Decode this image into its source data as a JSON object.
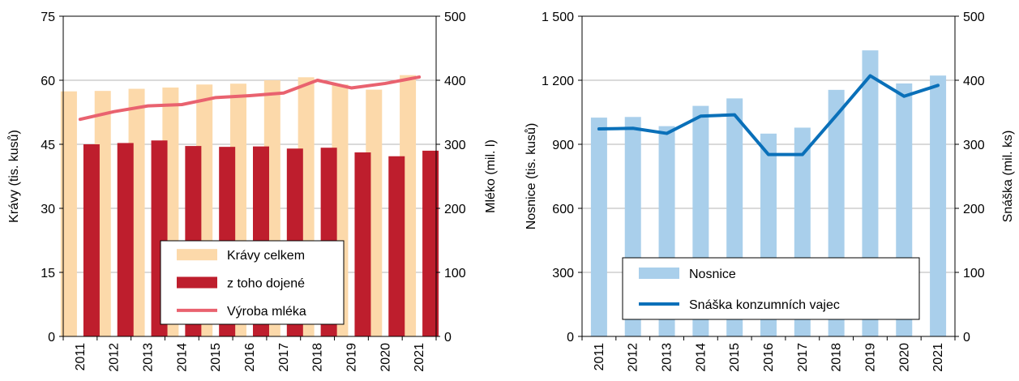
{
  "chart_data": [
    {
      "type": "bar",
      "categories": [
        "2011",
        "2012",
        "2013",
        "2014",
        "2015",
        "2016",
        "2017",
        "2018",
        "2019",
        "2020",
        "2021"
      ],
      "series": [
        {
          "name": "Krávy celkem",
          "kind": "bar",
          "axis": "left",
          "color": "#fcd9aa",
          "values": [
            57.4,
            57.5,
            58.0,
            58.3,
            59.0,
            59.2,
            60.0,
            60.7,
            59.0,
            57.8,
            61.2
          ]
        },
        {
          "name": "z toho dojené",
          "kind": "bar",
          "axis": "left",
          "color": "#be1e2d",
          "values": [
            45.0,
            45.3,
            45.9,
            44.6,
            44.4,
            44.5,
            44.0,
            44.2,
            43.1,
            42.2,
            43.5
          ]
        },
        {
          "name": "Výroba mléka",
          "kind": "line",
          "axis": "right",
          "color": "#e9626f",
          "values": [
            339,
            351,
            360,
            362,
            373,
            376,
            380,
            400,
            388,
            395,
            405
          ]
        }
      ],
      "ylabel": "Krávy (tis. kusů)",
      "y2label": "Mléko (mil. l)",
      "ylim": [
        0,
        75
      ],
      "y2lim": [
        0,
        500
      ],
      "yticks": [
        "0",
        "15",
        "30",
        "45",
        "60",
        "75"
      ],
      "y2ticks": [
        "0",
        "100",
        "200",
        "300",
        "400",
        "500"
      ],
      "grid": true,
      "legend_position": "bottom-right"
    },
    {
      "type": "bar",
      "categories": [
        "2011",
        "2012",
        "2013",
        "2014",
        "2015",
        "2016",
        "2017",
        "2018",
        "2019",
        "2020",
        "2021"
      ],
      "series": [
        {
          "name": "Nosnice",
          "kind": "bar",
          "axis": "left",
          "color": "#a9cfeb",
          "values": [
            1025,
            1028,
            985,
            1080,
            1115,
            950,
            978,
            1155,
            1340,
            1185,
            1222
          ]
        },
        {
          "name": "Snáška konzumních vajec",
          "kind": "line",
          "axis": "right",
          "color": "#0a70b9",
          "values": [
            324,
            325,
            317,
            344,
            346,
            284,
            284,
            345,
            407,
            375,
            392
          ]
        }
      ],
      "ylabel": "Nosnice (tis. kusů)",
      "y2label": "Snáška (mil. ks)",
      "ylim": [
        0,
        1500
      ],
      "y2lim": [
        0,
        500
      ],
      "yticks": [
        "0",
        "300",
        "600",
        "900",
        "1 200",
        "1 500"
      ],
      "y2ticks": [
        "0",
        "100",
        "200",
        "300",
        "400",
        "500"
      ],
      "grid": true,
      "legend_position": "bottom-right"
    }
  ]
}
